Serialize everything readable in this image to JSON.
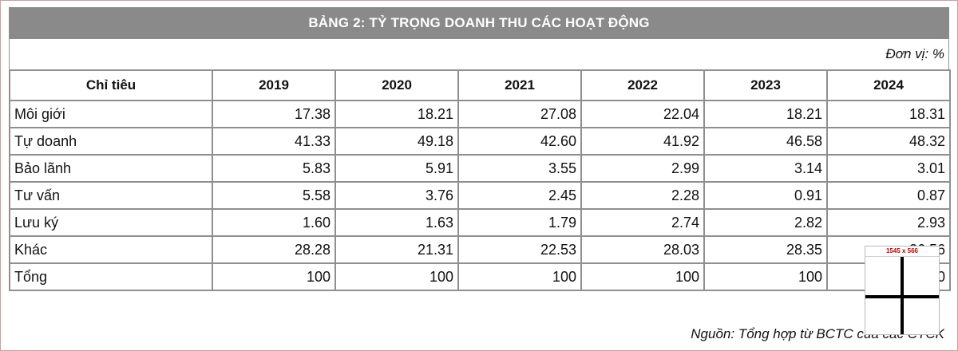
{
  "chart_data": {
    "type": "table",
    "title": "BẢNG 2: TỶ TRỌNG DOANH THU CÁC HOẠT ĐỘNG",
    "unit": "Đơn vị: %",
    "header": "Chỉ tiêu",
    "columns": [
      "2019",
      "2020",
      "2021",
      "2022",
      "2023",
      "2024"
    ],
    "rows": [
      {
        "label": "Môi giới",
        "values": [
          "17.38",
          "18.21",
          "27.08",
          "22.04",
          "18.21",
          "18.31"
        ]
      },
      {
        "label": "Tự doanh",
        "values": [
          "41.33",
          "49.18",
          "42.60",
          "41.92",
          "46.58",
          "48.32"
        ]
      },
      {
        "label": "Bảo lãnh",
        "values": [
          "5.83",
          "5.91",
          "3.55",
          "2.99",
          "3.14",
          "3.01"
        ]
      },
      {
        "label": "Tư vấn",
        "values": [
          "5.58",
          "3.76",
          "2.45",
          "2.28",
          "0.91",
          "0.87"
        ]
      },
      {
        "label": "Lưu ký",
        "values": [
          "1.60",
          "1.63",
          "1.79",
          "2.74",
          "2.82",
          "2.93"
        ]
      },
      {
        "label": "Khác",
        "values": [
          "28.28",
          "21.31",
          "22.53",
          "28.03",
          "28.35",
          "26.56"
        ]
      },
      {
        "label": "Tổng",
        "values": [
          "100",
          "100",
          "100",
          "100",
          "100",
          "100"
        ]
      }
    ],
    "source": "Nguồn: Tổng hợp từ BCTC của các CTCK"
  },
  "overlay": {
    "size_label": "1545 x 566"
  }
}
